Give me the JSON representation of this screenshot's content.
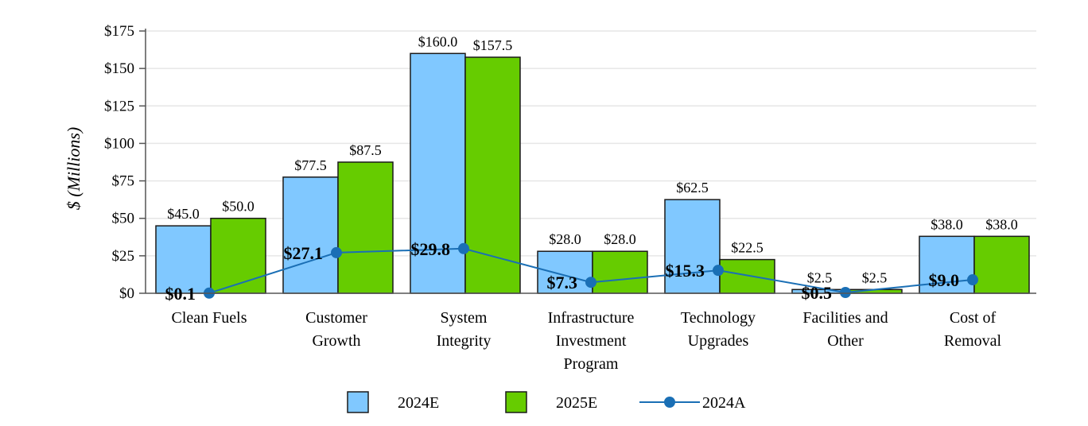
{
  "chart_data": {
    "type": "bar",
    "title": "",
    "ylabel": "$ (Millions)",
    "xlabel": "",
    "ylim": [
      0,
      175
    ],
    "y_ticks": [
      0,
      25,
      50,
      75,
      100,
      125,
      150,
      175
    ],
    "y_tick_labels": [
      "$0",
      "$25",
      "$50",
      "$75",
      "$100",
      "$125",
      "$150",
      "$175"
    ],
    "grid": true,
    "legend_position": "bottom",
    "categories": [
      [
        "Clean Fuels"
      ],
      [
        "Customer",
        "Growth"
      ],
      [
        "System",
        "Integrity"
      ],
      [
        "Infrastructure",
        "Investment",
        "Program"
      ],
      [
        "Technology",
        "Upgrades"
      ],
      [
        "Facilities and",
        "Other"
      ],
      [
        "Cost of",
        "Removal"
      ]
    ],
    "series": [
      {
        "name": "2024E",
        "kind": "bar",
        "color": "#80c8ff",
        "values": [
          45.0,
          77.5,
          160.0,
          28.0,
          62.5,
          2.5,
          38.0
        ],
        "labels": [
          "$45.0",
          "$77.5",
          "$160.0",
          "$28.0",
          "$62.5",
          "$2.5",
          "$38.0"
        ]
      },
      {
        "name": "2025E",
        "kind": "bar",
        "color": "#66cc00",
        "values": [
          50.0,
          87.5,
          157.5,
          28.0,
          22.5,
          2.5,
          38.0
        ],
        "labels": [
          "$50.0",
          "$87.5",
          "$157.5",
          "$28.0",
          "$22.5",
          "$2.5",
          "$38.0"
        ]
      },
      {
        "name": "2024A",
        "kind": "line",
        "color": "#1a6fb5",
        "values": [
          0.1,
          27.1,
          29.8,
          7.3,
          15.3,
          0.5,
          9.0
        ],
        "labels": [
          "$0.1",
          "$27.1",
          "$29.8",
          "$7.3",
          "$15.3",
          "$0.5",
          "$9.0"
        ]
      }
    ]
  }
}
